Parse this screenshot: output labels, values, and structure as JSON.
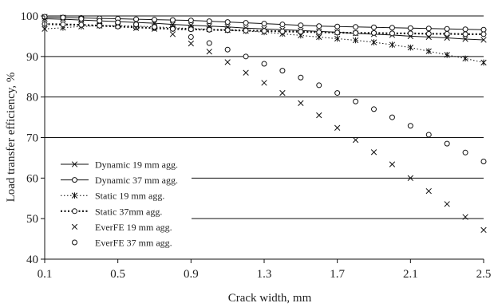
{
  "chart_data": {
    "type": "scatter",
    "xlabel": "Crack width, mm",
    "ylabel": "Load transfer efficiency, %",
    "xlim": [
      0.1,
      2.5
    ],
    "ylim": [
      40,
      100
    ],
    "x_ticks": [
      "0.1",
      "0.5",
      "0.9",
      "1.3",
      "1.7",
      "2.1",
      "2.5"
    ],
    "y_ticks": [
      "40",
      "50",
      "60",
      "70",
      "80",
      "90",
      "100"
    ],
    "grid": "horizontal",
    "legend_position": "left-middle",
    "series": [
      {
        "name": "Dynamic 19 mm agg.",
        "style": "line-x",
        "x": [
          0.1,
          0.2,
          0.3,
          0.4,
          0.5,
          0.6,
          0.7,
          0.8,
          0.9,
          1.0,
          1.1,
          1.2,
          1.3,
          1.4,
          1.5,
          1.6,
          1.7,
          1.8,
          1.9,
          2.0,
          2.1,
          2.2,
          2.3,
          2.4,
          2.5
        ],
        "y": [
          99.3,
          99.2,
          99.0,
          98.8,
          98.6,
          98.4,
          98.2,
          97.9,
          97.7,
          97.5,
          97.3,
          97.0,
          96.8,
          96.6,
          96.4,
          96.2,
          96.0,
          95.7,
          95.5,
          95.3,
          95.0,
          94.8,
          94.6,
          94.3,
          94.1
        ]
      },
      {
        "name": "Dynamic 37 mm agg.",
        "style": "line-o",
        "x": [
          0.1,
          0.2,
          0.3,
          0.4,
          0.5,
          0.6,
          0.7,
          0.8,
          0.9,
          1.0,
          1.1,
          1.2,
          1.3,
          1.4,
          1.5,
          1.6,
          1.7,
          1.8,
          1.9,
          2.0,
          2.1,
          2.2,
          2.3,
          2.4,
          2.5
        ],
        "y": [
          99.7,
          99.6,
          99.5,
          99.4,
          99.3,
          99.2,
          99.1,
          99.0,
          98.9,
          98.7,
          98.5,
          98.3,
          98.1,
          97.9,
          97.7,
          97.5,
          97.4,
          97.3,
          97.2,
          97.1,
          97.0,
          96.9,
          96.8,
          96.7,
          96.6
        ]
      },
      {
        "name": "Static 19 mm agg.",
        "style": "dotted-star",
        "x": [
          0.1,
          0.2,
          0.3,
          0.4,
          0.5,
          0.6,
          0.7,
          0.8,
          0.9,
          1.0,
          1.1,
          1.2,
          1.3,
          1.4,
          1.5,
          1.6,
          1.7,
          1.8,
          1.9,
          2.0,
          2.1,
          2.2,
          2.3,
          2.4,
          2.5
        ],
        "y": [
          96.8,
          97.1,
          97.4,
          97.6,
          97.6,
          97.5,
          97.3,
          97.1,
          96.9,
          96.7,
          96.5,
          96.3,
          96.0,
          95.6,
          95.2,
          94.8,
          94.4,
          94.0,
          93.5,
          92.9,
          92.2,
          91.3,
          90.4,
          89.5,
          88.5
        ]
      },
      {
        "name": "Static 37mm agg.",
        "style": "dotted-o",
        "x": [
          0.1,
          0.2,
          0.3,
          0.4,
          0.5,
          0.6,
          0.7,
          0.8,
          0.9,
          1.0,
          1.1,
          1.2,
          1.3,
          1.4,
          1.5,
          1.6,
          1.7,
          1.8,
          1.9,
          2.0,
          2.1,
          2.2,
          2.3,
          2.4,
          2.5
        ],
        "y": [
          98.0,
          97.9,
          97.8,
          97.6,
          97.4,
          97.2,
          97.0,
          96.8,
          96.7,
          96.6,
          96.5,
          96.4,
          96.3,
          96.2,
          96.1,
          96.0,
          95.9,
          95.8,
          95.8,
          95.7,
          95.7,
          95.6,
          95.6,
          95.5,
          95.5
        ]
      },
      {
        "name": "EverFE 19 mm agg.",
        "style": "marker-x",
        "x": [
          0.1,
          0.2,
          0.3,
          0.4,
          0.5,
          0.6,
          0.7,
          0.8,
          0.9,
          1.0,
          1.1,
          1.2,
          1.3,
          1.4,
          1.5,
          1.6,
          1.7,
          1.8,
          1.9,
          2.0,
          2.1,
          2.2,
          2.3,
          2.4,
          2.5
        ],
        "y": [
          99.8,
          99.6,
          99.2,
          98.6,
          98.0,
          97.0,
          96.8,
          95.5,
          93.2,
          91.2,
          88.6,
          86.0,
          83.5,
          81.0,
          78.5,
          75.5,
          72.4,
          69.4,
          66.4,
          63.4,
          60.0,
          56.8,
          53.6,
          50.4,
          47.2
        ]
      },
      {
        "name": "EverFE 37 mm agg.",
        "style": "marker-o",
        "x": [
          0.1,
          0.2,
          0.3,
          0.4,
          0.5,
          0.6,
          0.7,
          0.8,
          0.9,
          1.0,
          1.1,
          1.2,
          1.3,
          1.4,
          1.5,
          1.6,
          1.7,
          1.8,
          1.9,
          2.0,
          2.1,
          2.2,
          2.3,
          2.4,
          2.5
        ],
        "y": [
          99.8,
          99.6,
          99.3,
          98.8,
          98.4,
          97.9,
          97.3,
          96.8,
          94.8,
          93.3,
          91.7,
          90.0,
          88.2,
          86.5,
          84.8,
          82.9,
          81.0,
          78.9,
          77.0,
          75.0,
          72.9,
          70.7,
          68.5,
          66.3,
          64.1
        ]
      }
    ]
  }
}
